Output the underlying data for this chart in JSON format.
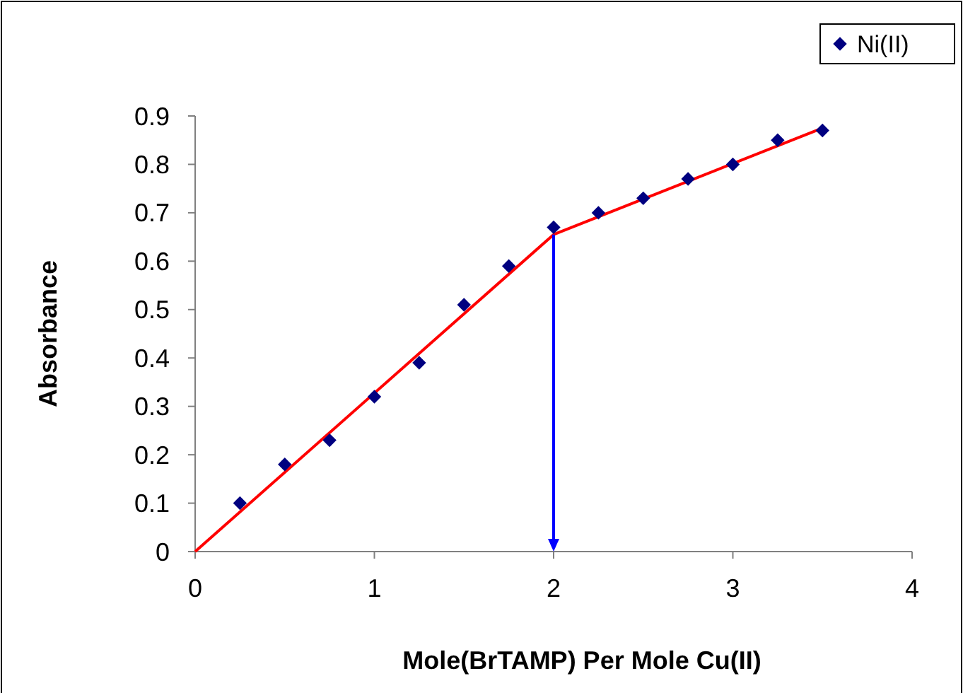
{
  "chart_data": {
    "type": "scatter",
    "xlabel": "Mole(BrTAMP) Per Mole Cu(II)",
    "ylabel": "Absorbance",
    "x": [
      0.25,
      0.5,
      0.75,
      1,
      1.25,
      1.5,
      1.75,
      2,
      2.25,
      2.5,
      2.75,
      3,
      3.25,
      3.5
    ],
    "series": [
      {
        "name": "Ni(II)",
        "color": "#000080",
        "marker": "diamond",
        "values": [
          0.1,
          0.18,
          0.23,
          0.32,
          0.39,
          0.51,
          0.59,
          0.67,
          0.7,
          0.73,
          0.77,
          0.8,
          0.85,
          0.87
        ]
      },
      {
        "type": "line",
        "color": "#ff0000",
        "marker": "none",
        "line_style": "solid",
        "x": [
          0,
          2,
          3.5
        ],
        "values": [
          0,
          0.655,
          0.875
        ]
      }
    ],
    "xlim": [
      0,
      4
    ],
    "xticks": [
      0,
      1,
      2,
      3,
      4
    ],
    "ylim": [
      0,
      0.9
    ],
    "yticks": [
      0,
      0.1,
      0.2,
      0.3,
      0.4,
      0.5,
      0.6,
      0.7,
      0.8,
      0.9
    ],
    "grid": false,
    "legend": "top right"
  }
}
